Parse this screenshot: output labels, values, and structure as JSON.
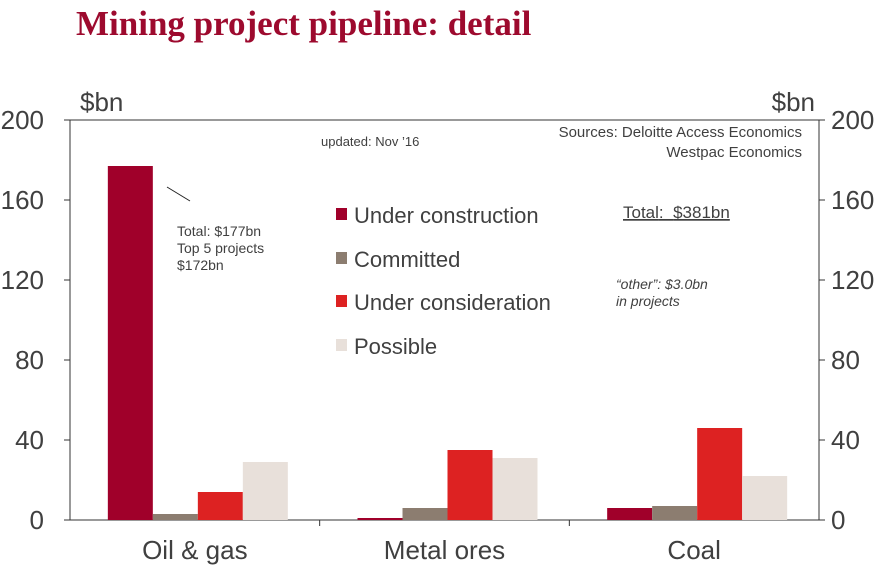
{
  "title": "Mining project pipeline: detail",
  "chart_data": {
    "type": "bar",
    "categories": [
      "Oil & gas",
      "Metal ores",
      "Coal"
    ],
    "series": [
      {
        "name": "Under construction",
        "color": "#a0002a",
        "values": [
          177,
          1,
          6
        ]
      },
      {
        "name": "Committed",
        "color": "#8c7d70",
        "values": [
          3,
          6,
          7
        ]
      },
      {
        "name": "Under consideration",
        "color": "#dd2222",
        "values": [
          14,
          35,
          46
        ]
      },
      {
        "name": "Possible",
        "color": "#e8e0da",
        "values": [
          29,
          31,
          22
        ]
      }
    ],
    "ylim": [
      0,
      200
    ],
    "yticks": [
      0,
      40,
      80,
      120,
      160,
      200
    ],
    "ylabel_left": "$bn",
    "ylabel_right": "$bn",
    "legend_position": "center"
  },
  "annotations": {
    "updated": "updated:  Nov ’16",
    "sources_line1": "Sources: Deloitte Access Economics",
    "sources_line2": "Westpac Economics",
    "total_label": "Total",
    "total_colon": ":  ",
    "total_value": "$381bn",
    "other_line1": "“other”: $3.0bn",
    "other_line2": "in projects",
    "oil_line1": "Total: $177bn",
    "oil_line2": "Top 5 projects",
    "oil_line3": "$172bn"
  }
}
